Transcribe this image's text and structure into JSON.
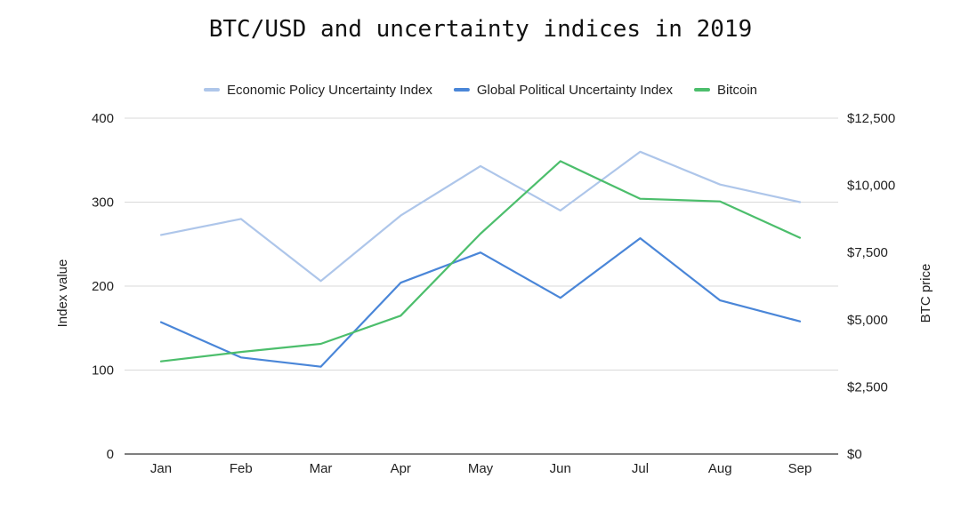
{
  "chart_data": {
    "type": "line",
    "title": "BTC/USD and uncertainty indices in 2019",
    "categories": [
      "Jan",
      "Feb",
      "Mar",
      "Apr",
      "May",
      "Jun",
      "Jul",
      "Aug",
      "Sep"
    ],
    "left_axis": {
      "label": "Index value",
      "range": [
        0,
        400
      ],
      "ticks": [
        0,
        100,
        200,
        300,
        400
      ],
      "tick_labels": [
        "0",
        "100",
        "200",
        "300",
        "400"
      ]
    },
    "right_axis": {
      "label": "BTC price",
      "range": [
        0,
        12500
      ],
      "ticks": [
        0,
        2500,
        5000,
        7500,
        10000,
        12500
      ],
      "tick_labels": [
        "$0",
        "$2,500",
        "$5,000",
        "$7,500",
        "$10,000",
        "$12,500"
      ]
    },
    "grid": true,
    "legend_position": "top",
    "series": [
      {
        "name": "Economic Policy Uncertainty Index",
        "axis": "left",
        "color": "#aec6ea",
        "values": [
          261,
          280,
          206,
          284,
          343,
          290,
          360,
          321,
          300
        ]
      },
      {
        "name": "Global Political Uncertainty Index",
        "axis": "left",
        "color": "#4a86d8",
        "values": [
          157,
          115,
          104,
          204,
          240,
          186,
          257,
          183,
          158
        ]
      },
      {
        "name": "Bitcoin",
        "axis": "right",
        "color": "#4cbe6c",
        "values": [
          3450,
          3800,
          4100,
          5150,
          8200,
          10900,
          9500,
          9400,
          8050
        ]
      }
    ]
  }
}
